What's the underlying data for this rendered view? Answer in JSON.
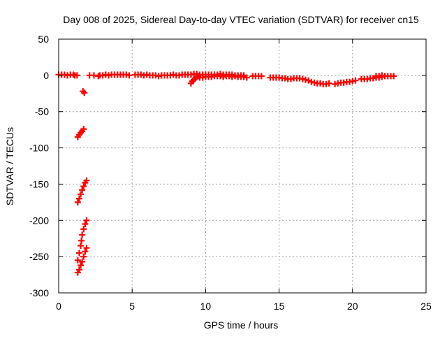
{
  "chart_data": {
    "type": "scatter",
    "title": "Day 008 of 2025, Sidereal Day-to-day VTEC variation (SDTVAR) for receiver cn15",
    "xlabel": "GPS time / hours",
    "ylabel": "SDTVAR / TECUs",
    "xlim": [
      0,
      25
    ],
    "ylim": [
      -300,
      50
    ],
    "xticks": [
      0,
      5,
      10,
      15,
      20,
      25
    ],
    "yticks": [
      50,
      0,
      -50,
      -100,
      -150,
      -200,
      -250,
      -300
    ],
    "grid": true,
    "marker": "plus",
    "point_color": "#ff0000",
    "series": [
      {
        "points": [
          [
            0.0,
            1
          ],
          [
            0.2,
            1
          ],
          [
            0.4,
            1
          ],
          [
            0.6,
            0
          ],
          [
            0.8,
            1
          ],
          [
            1.0,
            1
          ],
          [
            1.1,
            0
          ],
          [
            1.25,
            0
          ],
          [
            1.65,
            -22
          ],
          [
            1.75,
            -24
          ],
          [
            1.3,
            -85
          ],
          [
            1.4,
            -82
          ],
          [
            1.5,
            -79
          ],
          [
            1.6,
            -77
          ],
          [
            1.7,
            -74
          ],
          [
            1.3,
            -175
          ],
          [
            1.4,
            -170
          ],
          [
            1.5,
            -164
          ],
          [
            1.6,
            -158
          ],
          [
            1.7,
            -153
          ],
          [
            1.8,
            -148
          ],
          [
            1.9,
            -145
          ],
          [
            1.3,
            -255
          ],
          [
            1.4,
            -245
          ],
          [
            1.5,
            -235
          ],
          [
            1.55,
            -228
          ],
          [
            1.6,
            -220
          ],
          [
            1.7,
            -212
          ],
          [
            1.8,
            -205
          ],
          [
            1.9,
            -200
          ],
          [
            1.3,
            -272
          ],
          [
            1.4,
            -268
          ],
          [
            1.5,
            -262
          ],
          [
            1.6,
            -257
          ],
          [
            1.7,
            -250
          ],
          [
            1.8,
            -243
          ],
          [
            1.9,
            -238
          ],
          [
            2.1,
            0
          ],
          [
            2.4,
            0
          ],
          [
            2.7,
            -1
          ],
          [
            2.8,
            0
          ],
          [
            3.0,
            0
          ],
          [
            3.2,
            1
          ],
          [
            3.4,
            0
          ],
          [
            3.6,
            1
          ],
          [
            3.8,
            1
          ],
          [
            4.0,
            1
          ],
          [
            4.2,
            1
          ],
          [
            4.4,
            1
          ],
          [
            4.6,
            1
          ],
          [
            4.8,
            0
          ],
          [
            5.2,
            1
          ],
          [
            5.4,
            1
          ],
          [
            5.6,
            1
          ],
          [
            5.8,
            0
          ],
          [
            6.0,
            1
          ],
          [
            6.2,
            0
          ],
          [
            6.4,
            0
          ],
          [
            6.6,
            0
          ],
          [
            6.8,
            -1
          ],
          [
            7.0,
            0
          ],
          [
            7.2,
            0
          ],
          [
            7.4,
            0
          ],
          [
            7.6,
            0
          ],
          [
            7.8,
            1
          ],
          [
            8.0,
            0
          ],
          [
            8.2,
            0
          ],
          [
            8.4,
            1
          ],
          [
            8.6,
            1
          ],
          [
            8.8,
            1
          ],
          [
            9.0,
            -11
          ],
          [
            9.1,
            -8
          ],
          [
            9.2,
            -6
          ],
          [
            9.3,
            -4
          ],
          [
            9.4,
            -2
          ],
          [
            9.5,
            -1
          ],
          [
            9.0,
            1
          ],
          [
            9.2,
            2
          ],
          [
            9.4,
            2
          ],
          [
            9.6,
            1
          ],
          [
            9.8,
            1
          ],
          [
            10.0,
            1
          ],
          [
            9.6,
            -3
          ],
          [
            9.8,
            -3
          ],
          [
            10.0,
            -2
          ],
          [
            10.2,
            -2
          ],
          [
            10.4,
            -2
          ],
          [
            10.6,
            -1
          ],
          [
            10.8,
            -1
          ],
          [
            11.0,
            -1
          ],
          [
            10.2,
            1
          ],
          [
            10.4,
            1
          ],
          [
            10.6,
            1
          ],
          [
            10.8,
            1
          ],
          [
            11.0,
            2
          ],
          [
            11.2,
            1
          ],
          [
            11.4,
            1
          ],
          [
            11.6,
            1
          ],
          [
            11.8,
            1
          ],
          [
            11.2,
            -2
          ],
          [
            11.4,
            -1
          ],
          [
            11.6,
            -1
          ],
          [
            11.8,
            -2
          ],
          [
            12.0,
            -1
          ],
          [
            12.2,
            -2
          ],
          [
            12.4,
            -2
          ],
          [
            12.6,
            -2
          ],
          [
            12.8,
            -3
          ],
          [
            12.0,
            0
          ],
          [
            12.2,
            0
          ],
          [
            12.4,
            0
          ],
          [
            12.6,
            0
          ],
          [
            13.2,
            -1
          ],
          [
            13.4,
            -1
          ],
          [
            13.6,
            -1
          ],
          [
            13.8,
            -1
          ],
          [
            14.4,
            -3
          ],
          [
            14.6,
            -3
          ],
          [
            14.8,
            -3
          ],
          [
            15.0,
            -3
          ],
          [
            15.2,
            -4
          ],
          [
            15.4,
            -4
          ],
          [
            15.6,
            -5
          ],
          [
            15.8,
            -5
          ],
          [
            16.0,
            -4
          ],
          [
            16.2,
            -4
          ],
          [
            16.4,
            -4
          ],
          [
            16.6,
            -5
          ],
          [
            16.8,
            -6
          ],
          [
            17.0,
            -7
          ],
          [
            17.2,
            -9
          ],
          [
            17.4,
            -10
          ],
          [
            17.6,
            -11
          ],
          [
            17.8,
            -11
          ],
          [
            18.0,
            -12
          ],
          [
            18.2,
            -12
          ],
          [
            18.4,
            -11
          ],
          [
            18.8,
            -12
          ],
          [
            19.0,
            -11
          ],
          [
            19.2,
            -10
          ],
          [
            19.4,
            -10
          ],
          [
            19.6,
            -9
          ],
          [
            19.8,
            -9
          ],
          [
            20.0,
            -8
          ],
          [
            20.2,
            -7
          ],
          [
            20.6,
            -5
          ],
          [
            20.8,
            -5
          ],
          [
            21.0,
            -5
          ],
          [
            21.2,
            -4
          ],
          [
            21.4,
            -4
          ],
          [
            21.6,
            -3
          ],
          [
            21.8,
            -3
          ],
          [
            22.0,
            -2
          ],
          [
            21.6,
            -1
          ],
          [
            21.8,
            -1
          ],
          [
            22.0,
            0
          ],
          [
            22.2,
            -1
          ],
          [
            22.4,
            -1
          ],
          [
            22.6,
            -1
          ],
          [
            22.8,
            -1
          ]
        ]
      }
    ]
  }
}
